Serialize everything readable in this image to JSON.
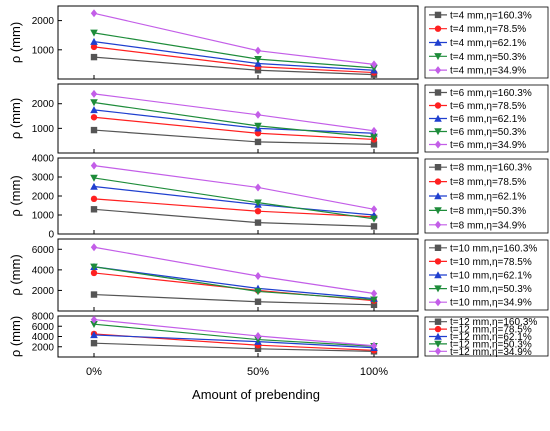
{
  "figure": {
    "xlabel": "Amount of prebending",
    "ylabel": "ρ (mm)"
  },
  "chart_data": [
    {
      "type": "line",
      "x": [
        "0%",
        "50%",
        "100%"
      ],
      "ylabel": "ρ (mm)",
      "ylim": [
        0,
        2500
      ],
      "yticks": [
        1000,
        2000
      ],
      "series": [
        {
          "name": "t=4 mm,η=160.3%",
          "color": "#555555",
          "marker": "square",
          "values": [
            750,
            300,
            150
          ]
        },
        {
          "name": "t=4 mm,η=78.5%",
          "color": "#ff2020",
          "marker": "circle",
          "values": [
            1100,
            420,
            220
          ]
        },
        {
          "name": "t=4 mm,η=62.1%",
          "color": "#1f3fcf",
          "marker": "triangle-up",
          "values": [
            1280,
            530,
            300
          ]
        },
        {
          "name": "t=4 mm,η=50.3%",
          "color": "#1e8c3a",
          "marker": "triangle-down",
          "values": [
            1580,
            680,
            380
          ]
        },
        {
          "name": "t=4 mm,η=34.9%",
          "color": "#c35ee8",
          "marker": "diamond",
          "values": [
            2250,
            970,
            500
          ]
        }
      ]
    },
    {
      "type": "line",
      "x": [
        "0%",
        "50%",
        "100%"
      ],
      "ylabel": "ρ (mm)",
      "ylim": [
        0,
        2800
      ],
      "yticks": [
        1000,
        2000
      ],
      "series": [
        {
          "name": "t=6 mm,η=160.3%",
          "color": "#555555",
          "marker": "square",
          "values": [
            930,
            450,
            350
          ]
        },
        {
          "name": "t=6 mm,η=78.5%",
          "color": "#ff2020",
          "marker": "circle",
          "values": [
            1450,
            800,
            550
          ]
        },
        {
          "name": "t=6 mm,η=62.1%",
          "color": "#1f3fcf",
          "marker": "triangle-up",
          "values": [
            1750,
            1000,
            800
          ]
        },
        {
          "name": "t=6 mm,η=50.3%",
          "color": "#1e8c3a",
          "marker": "triangle-down",
          "values": [
            2050,
            1100,
            650
          ]
        },
        {
          "name": "t=6 mm,η=34.9%",
          "color": "#c35ee8",
          "marker": "diamond",
          "values": [
            2400,
            1550,
            900
          ]
        }
      ]
    },
    {
      "type": "line",
      "x": [
        "0%",
        "50%",
        "100%"
      ],
      "ylabel": "ρ (mm)",
      "ylim": [
        0,
        4000
      ],
      "yticks": [
        0,
        1000,
        2000,
        3000,
        4000
      ],
      "series": [
        {
          "name": "t=8 mm,η=160.3%",
          "color": "#555555",
          "marker": "square",
          "values": [
            1300,
            600,
            400
          ]
        },
        {
          "name": "t=8 mm,η=78.5%",
          "color": "#ff2020",
          "marker": "circle",
          "values": [
            1850,
            1200,
            900
          ]
        },
        {
          "name": "t=8 mm,η=62.1%",
          "color": "#1f3fcf",
          "marker": "triangle-up",
          "values": [
            2500,
            1550,
            1000
          ]
        },
        {
          "name": "t=8 mm,η=50.3%",
          "color": "#1e8c3a",
          "marker": "triangle-down",
          "values": [
            2950,
            1650,
            800
          ]
        },
        {
          "name": "t=8 mm,η=34.9%",
          "color": "#c35ee8",
          "marker": "diamond",
          "values": [
            3600,
            2450,
            1300
          ]
        }
      ]
    },
    {
      "type": "line",
      "x": [
        "0%",
        "50%",
        "100%"
      ],
      "ylabel": "ρ (mm)",
      "ylim": [
        0,
        7000
      ],
      "yticks": [
        2000,
        4000,
        6000
      ],
      "series": [
        {
          "name": "t=10 mm,η=160.3%",
          "color": "#555555",
          "marker": "square",
          "values": [
            1600,
            900,
            600
          ]
        },
        {
          "name": "t=10 mm,η=78.5%",
          "color": "#ff2020",
          "marker": "circle",
          "values": [
            3700,
            2000,
            1000
          ]
        },
        {
          "name": "t=10 mm,η=62.1%",
          "color": "#1f3fcf",
          "marker": "triangle-up",
          "values": [
            4300,
            2200,
            1200
          ]
        },
        {
          "name": "t=10 mm,η=50.3%",
          "color": "#1e8c3a",
          "marker": "triangle-down",
          "values": [
            4300,
            1900,
            1100
          ]
        },
        {
          "name": "t=10 mm,η=34.9%",
          "color": "#c35ee8",
          "marker": "diamond",
          "values": [
            6200,
            3400,
            1700
          ]
        }
      ]
    },
    {
      "type": "line",
      "x": [
        "0%",
        "50%",
        "100%"
      ],
      "ylabel": "ρ (mm)",
      "ylim": [
        0,
        8000
      ],
      "yticks": [
        2000,
        4000,
        6000,
        8000
      ],
      "series": [
        {
          "name": "t=12 mm,η=160.3%",
          "color": "#555555",
          "marker": "square",
          "values": [
            2700,
            1600,
            1100
          ]
        },
        {
          "name": "t=12 mm,η=78.5%",
          "color": "#ff2020",
          "marker": "circle",
          "values": [
            4500,
            2300,
            1300
          ]
        },
        {
          "name": "t=12 mm,η=62.1%",
          "color": "#1f3fcf",
          "marker": "triangle-up",
          "values": [
            4300,
            3000,
            1800
          ]
        },
        {
          "name": "t=12 mm,η=50.3%",
          "color": "#1e8c3a",
          "marker": "triangle-down",
          "values": [
            6400,
            3400,
            2100
          ]
        },
        {
          "name": "t=12 mm,η=34.9%",
          "color": "#c35ee8",
          "marker": "diamond",
          "values": [
            7300,
            4100,
            2200
          ]
        }
      ]
    }
  ]
}
